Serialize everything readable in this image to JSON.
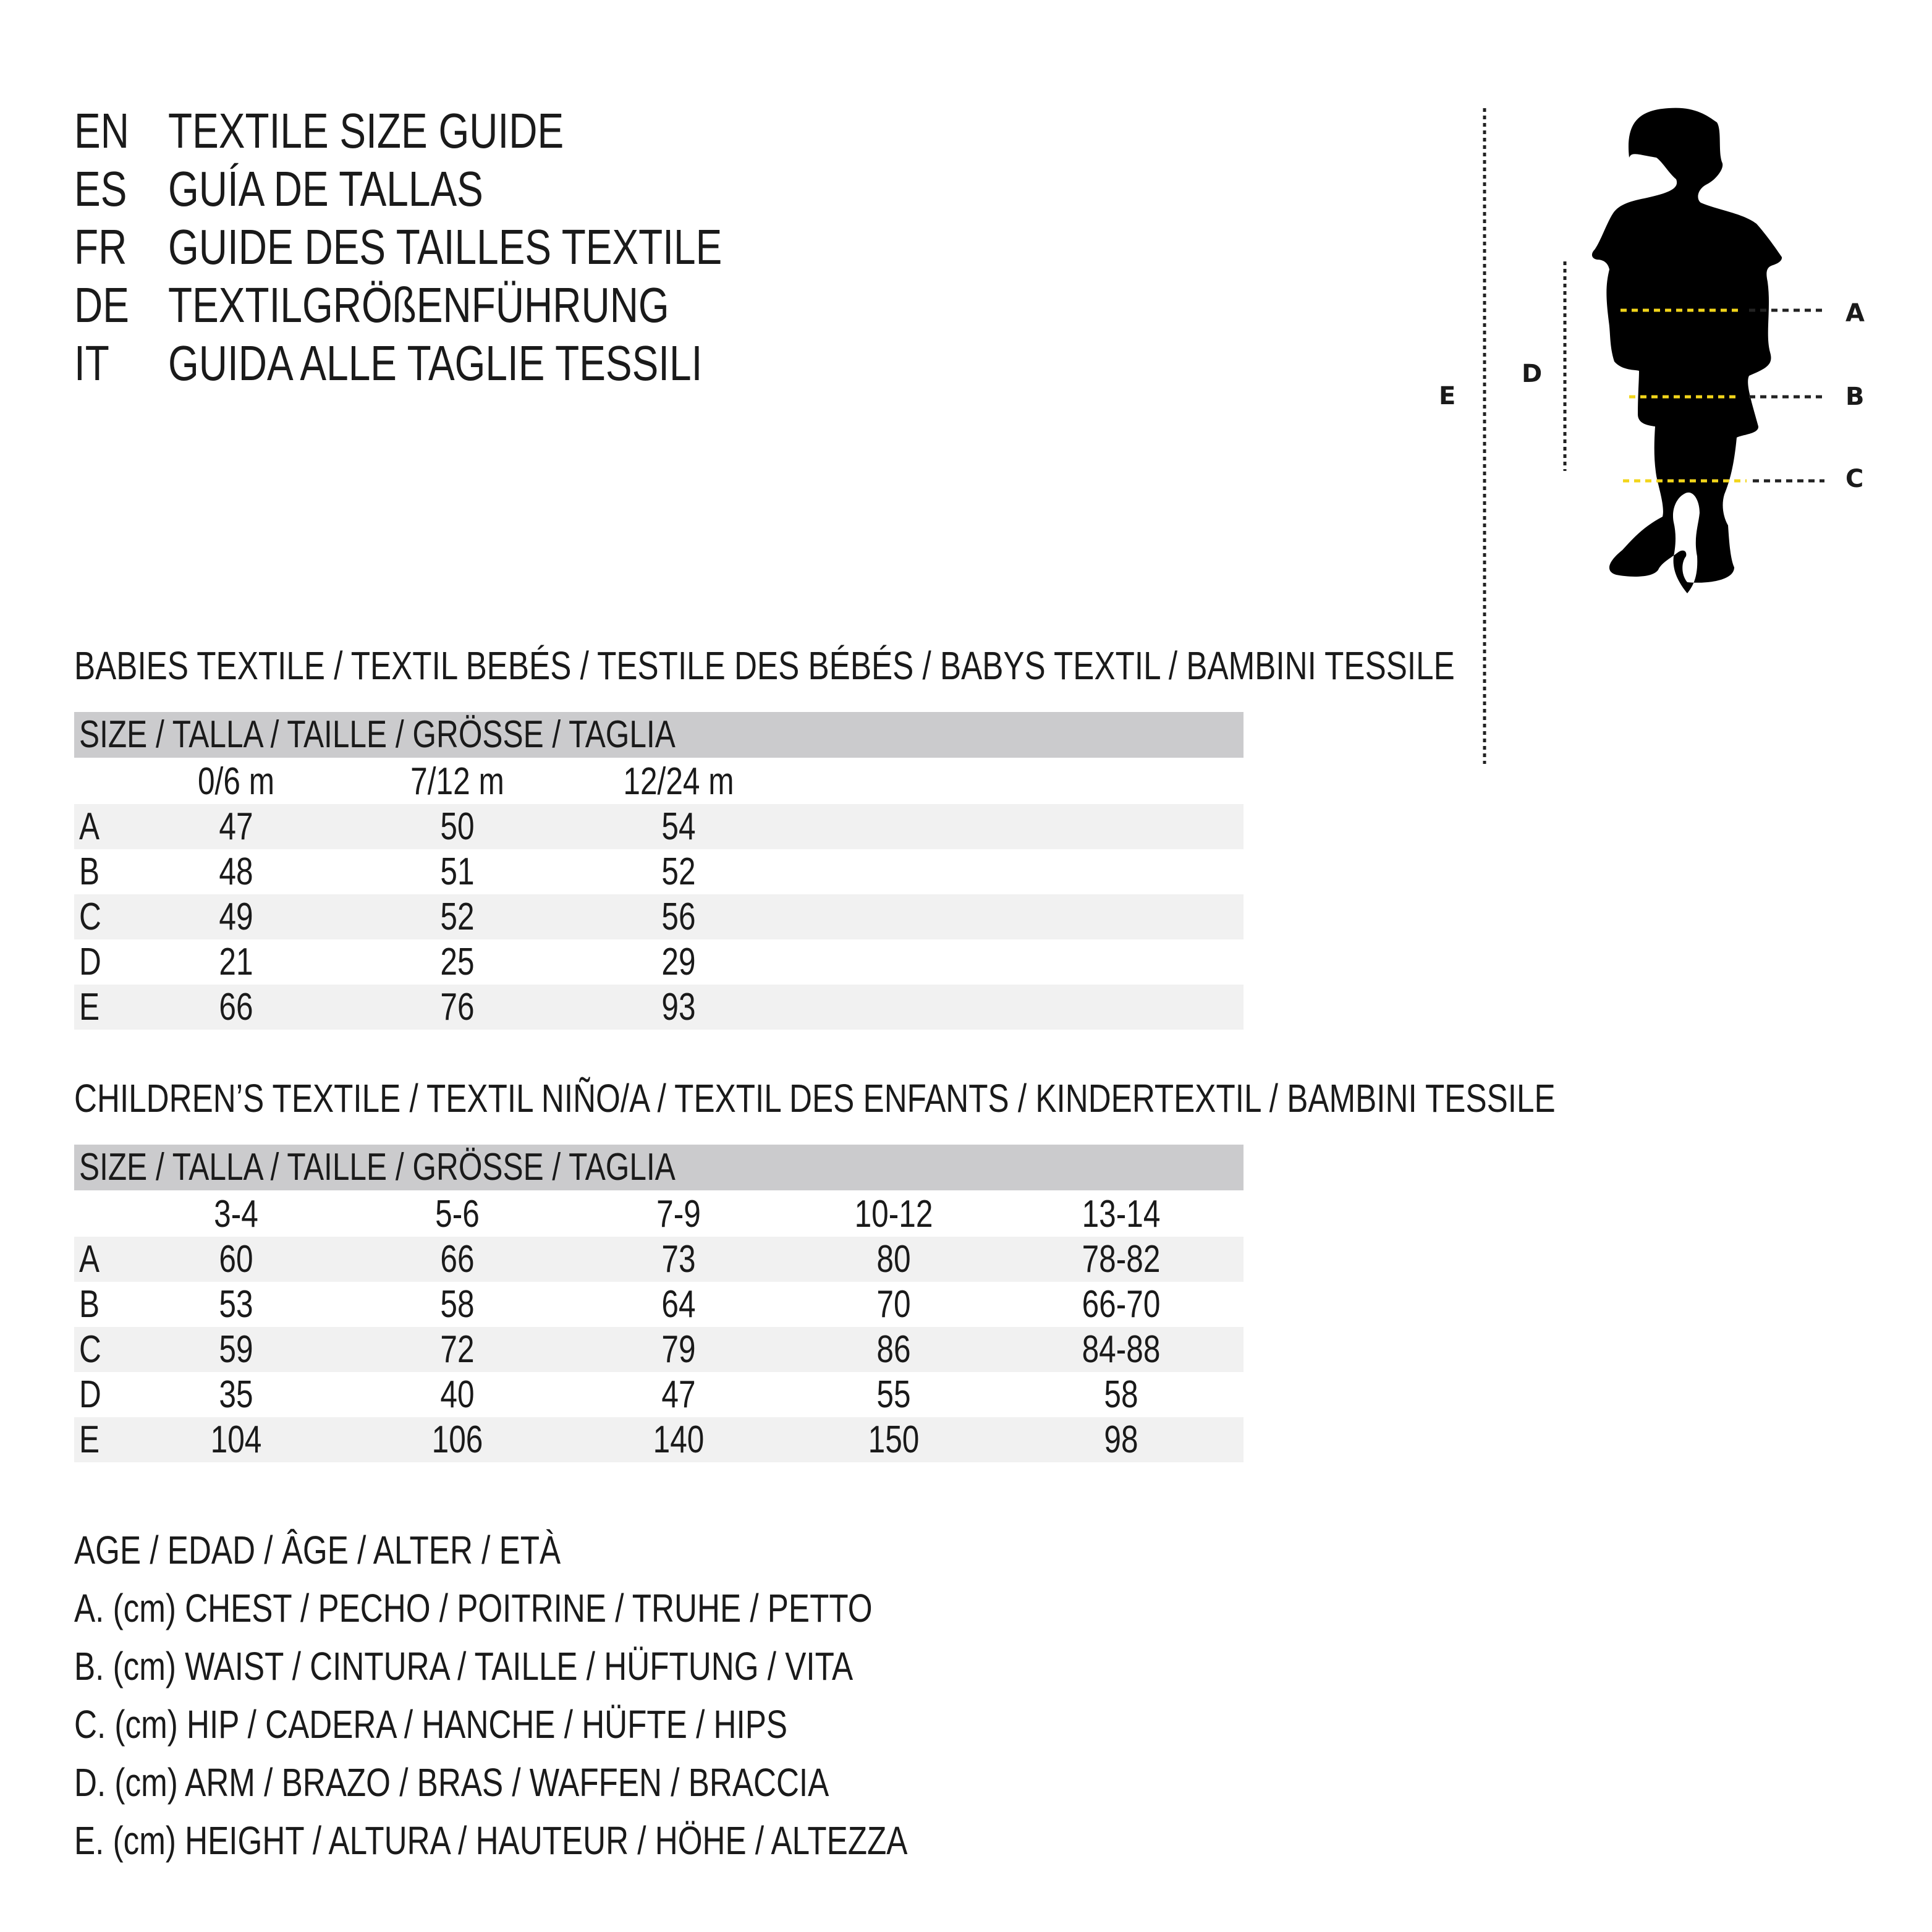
{
  "header": [
    {
      "code": "EN",
      "title": "TEXTILE SIZE GUIDE"
    },
    {
      "code": "ES",
      "title": "GUÍA DE TALLAS"
    },
    {
      "code": "FR",
      "title": "GUIDE DES TAILLES TEXTILE"
    },
    {
      "code": "DE",
      "title": "TEXTILGRÖßENFÜHRUNG"
    },
    {
      "code": "IT",
      "title": "GUIDA ALLE TAGLIE TESSILI"
    }
  ],
  "figure": {
    "labels": {
      "A": "A",
      "B": "B",
      "C": "C",
      "D": "D",
      "E": "E"
    },
    "accent_color": "#f2d51a"
  },
  "babies": {
    "title": "BABIES TEXTILE / TEXTIL BEBÉS / TESTILE DES BÉBÉS / BABYS TEXTIL / BAMBINI TESSILE",
    "size_header": "SIZE / TALLA / TAILLE / GRÖSSE / TAGLIA",
    "columns": [
      "0/6 m",
      "7/12 m",
      "12/24 m"
    ],
    "rows": [
      {
        "label": "A",
        "values": [
          "47",
          "50",
          "54"
        ]
      },
      {
        "label": "B",
        "values": [
          "48",
          "51",
          "52"
        ]
      },
      {
        "label": "C",
        "values": [
          "49",
          "52",
          "56"
        ]
      },
      {
        "label": "D",
        "values": [
          "21",
          "25",
          "29"
        ]
      },
      {
        "label": "E",
        "values": [
          "66",
          "76",
          "93"
        ]
      }
    ]
  },
  "children": {
    "title": "CHILDREN’S TEXTILE / TEXTIL NIÑO/A / TEXTIL DES ENFANTS / KINDERTEXTIL / BAMBINI TESSILE",
    "size_header": "SIZE / TALLA / TAILLE / GRÖSSE / TAGLIA",
    "columns": [
      "3-4",
      "5-6",
      "7-9",
      "10-12",
      "13-14"
    ],
    "rows": [
      {
        "label": "A",
        "values": [
          "60",
          "66",
          "73",
          "80",
          "78-82"
        ]
      },
      {
        "label": "B",
        "values": [
          "53",
          "58",
          "64",
          "70",
          "66-70"
        ]
      },
      {
        "label": "C",
        "values": [
          "59",
          "72",
          "79",
          "86",
          "84-88"
        ]
      },
      {
        "label": "D",
        "values": [
          "35",
          "40",
          "47",
          "55",
          "58"
        ]
      },
      {
        "label": "E",
        "values": [
          "104",
          "106",
          "140",
          "150",
          "98"
        ]
      }
    ]
  },
  "legend": [
    "AGE / EDAD / ÂGE / ALTER / ETÀ",
    "A. (cm) CHEST / PECHO / POITRINE / TRUHE / PETTO",
    "B. (cm) WAIST / CINTURA / TAILLE / HÜFTUNG / VITA",
    "C. (cm) HIP / CADERA / HANCHE / HÜFTE / HIPS",
    "D. (cm) ARM / BRAZO / BRAS / WAFFEN / BRACCIA",
    "E. (cm) HEIGHT / ALTURA / HAUTEUR / HÖHE / ALTEZZA"
  ]
}
